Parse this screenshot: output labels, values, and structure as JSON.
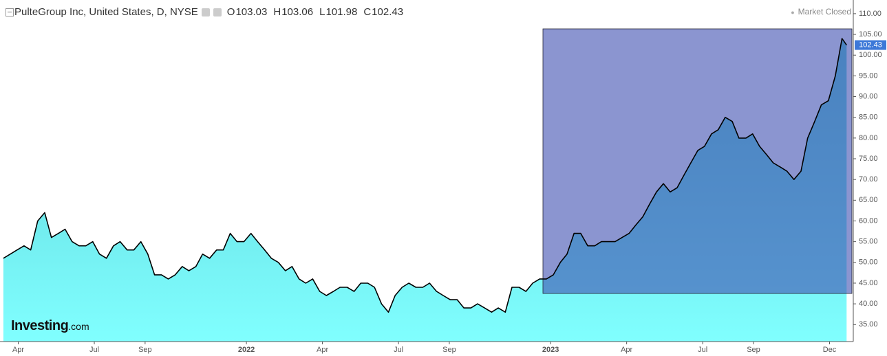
{
  "chart_data": {
    "type": "area",
    "title": "PulteGroup Inc, United States, D, NYSE",
    "header": {
      "open_label": "O",
      "open": 103.03,
      "high_label": "H",
      "high": 103.06,
      "low_label": "L",
      "low": 101.98,
      "close_label": "C",
      "close": 102.43
    },
    "status": "Market Closed",
    "watermark": {
      "brand": "Investing",
      "suffix": ".com"
    },
    "last_price": 102.43,
    "line_color": "#000000",
    "fill_top": "#5ccfd6",
    "fill_bottom": "#80ffff",
    "x": [
      2021.201,
      2021.224,
      2021.246,
      2021.269,
      2021.291,
      2021.314,
      2021.337,
      2021.359,
      2021.382,
      2021.404,
      2021.427,
      2021.45,
      2021.472,
      2021.495,
      2021.517,
      2021.54,
      2021.563,
      2021.585,
      2021.608,
      2021.63,
      2021.653,
      2021.676,
      2021.698,
      2021.721,
      2021.743,
      2021.766,
      2021.789,
      2021.811,
      2021.834,
      2021.856,
      2021.879,
      2021.902,
      2021.924,
      2021.947,
      2021.969,
      2021.992,
      2022.015,
      2022.037,
      2022.06,
      2022.082,
      2022.105,
      2022.128,
      2022.15,
      2022.173,
      2022.195,
      2022.218,
      2022.241,
      2022.263,
      2022.286,
      2022.308,
      2022.331,
      2022.354,
      2022.376,
      2022.399,
      2022.421,
      2022.444,
      2022.467,
      2022.489,
      2022.512,
      2022.534,
      2022.557,
      2022.58,
      2022.602,
      2022.625,
      2022.647,
      2022.67,
      2022.693,
      2022.715,
      2022.738,
      2022.76,
      2022.783,
      2022.806,
      2022.828,
      2022.851,
      2022.873,
      2022.896,
      2022.919,
      2022.941,
      2022.964,
      2022.986,
      2023.009,
      2023.032,
      2023.054,
      2023.077,
      2023.099,
      2023.122,
      2023.145,
      2023.167,
      2023.19,
      2023.212,
      2023.235,
      2023.258,
      2023.28,
      2023.303,
      2023.325,
      2023.348,
      2023.371,
      2023.393,
      2023.416,
      2023.438,
      2023.461,
      2023.484,
      2023.506,
      2023.529,
      2023.551,
      2023.574,
      2023.597,
      2023.619,
      2023.642,
      2023.664,
      2023.687,
      2023.71,
      2023.732,
      2023.755,
      2023.777,
      2023.8,
      2023.823,
      2023.845,
      2023.868,
      2023.89,
      2023.913,
      2023.936,
      2023.958,
      2023.973
    ],
    "values": [
      51,
      52,
      53,
      54,
      53,
      60,
      62,
      56,
      57,
      58,
      55,
      54,
      54,
      55,
      52,
      51,
      54,
      55,
      53,
      53,
      55,
      52,
      47,
      47,
      46,
      47,
      49,
      48,
      49,
      52,
      51,
      53,
      53,
      57,
      55,
      55,
      57,
      55,
      53,
      51,
      50,
      48,
      49,
      46,
      45,
      46,
      43,
      42,
      43,
      44,
      44,
      43,
      45,
      45,
      44,
      40,
      38,
      42,
      44,
      45,
      44,
      44,
      45,
      43,
      42,
      41,
      41,
      39,
      39,
      40,
      39,
      38,
      39,
      38,
      44,
      44,
      43,
      45,
      46,
      46,
      47,
      50,
      52,
      57,
      57,
      54,
      54,
      55,
      55,
      55,
      56,
      57,
      59,
      61,
      64,
      67,
      69,
      67,
      68,
      71,
      74,
      77,
      78,
      81,
      82,
      85,
      84,
      80,
      80,
      81,
      78,
      76,
      74,
      73,
      72,
      70,
      72,
      80,
      84,
      88,
      89,
      95,
      104,
      102.43
    ],
    "xlim": [
      2021.19,
      2023.995
    ],
    "ylim": [
      30.9,
      113.3
    ],
    "xticks": [
      {
        "value": 2021.25,
        "label": "Apr"
      },
      {
        "value": 2021.5,
        "label": "Jul"
      },
      {
        "value": 2021.667,
        "label": "Sep"
      },
      2022,
      {
        "value": 2022.25,
        "label": "Apr"
      },
      {
        "value": 2022.5,
        "label": "Jul"
      },
      {
        "value": 2022.667,
        "label": "Sep"
      },
      2023,
      {
        "value": 2023.25,
        "label": "Apr"
      },
      {
        "value": 2023.5,
        "label": "Jul"
      },
      {
        "value": 2023.667,
        "label": "Sep"
      },
      {
        "value": 2023.917,
        "label": "Dec"
      }
    ],
    "yticks": [
      {
        "value": 35,
        "label": "35.00"
      },
      {
        "value": 40,
        "label": "40.00"
      },
      {
        "value": 45,
        "label": "45.00"
      },
      {
        "value": 50,
        "label": "50.00"
      },
      {
        "value": 55,
        "label": "55.00"
      },
      {
        "value": 60,
        "label": "60.00"
      },
      {
        "value": 65,
        "label": "65.00"
      },
      {
        "value": 70,
        "label": "70.00"
      },
      {
        "value": 75,
        "label": "75.00"
      },
      {
        "value": 80,
        "label": "80.00"
      },
      {
        "value": 85,
        "label": "85.00"
      },
      {
        "value": 90,
        "label": "90.00"
      },
      {
        "value": 95,
        "label": "95.00"
      },
      {
        "value": 100,
        "label": "100.00"
      },
      {
        "value": 105,
        "label": "105.00"
      },
      {
        "value": 110,
        "label": "110.00"
      }
    ]
  }
}
